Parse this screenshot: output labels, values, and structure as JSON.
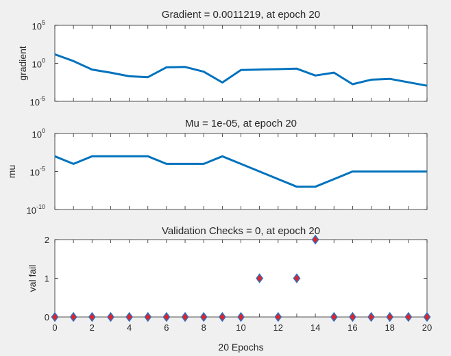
{
  "chart_data": [
    {
      "type": "line",
      "title": "Gradient = 0.0011219, at epoch 20",
      "ylabel": "gradient",
      "xlabel": "",
      "yscale": "log",
      "xlim": [
        0,
        20
      ],
      "ylim_exp": [
        -5,
        5
      ],
      "yticks_exp": [
        -5,
        0,
        5
      ],
      "series": [
        {
          "x": [
            0,
            1,
            2,
            3,
            4,
            5,
            6,
            7,
            8,
            9,
            10,
            11,
            12,
            13,
            14,
            15,
            16,
            17,
            18,
            19,
            20
          ],
          "y": [
            15,
            2,
            0.15,
            0.06,
            0.02,
            0.015,
            0.3,
            0.33,
            0.08,
            0.003,
            0.13,
            0.15,
            0.17,
            0.2,
            0.025,
            0.06,
            0.0018,
            0.007,
            0.009,
            0.0032,
            0.0011219
          ]
        }
      ],
      "color": "#0072bd",
      "grid": false
    },
    {
      "type": "line",
      "title": "Mu = 1e-05, at epoch 20",
      "ylabel": "mu",
      "xlabel": "",
      "yscale": "log",
      "xlim": [
        0,
        20
      ],
      "ylim_exp": [
        -10,
        0
      ],
      "yticks_exp": [
        -10,
        -5,
        0
      ],
      "series": [
        {
          "x": [
            0,
            1,
            2,
            3,
            4,
            5,
            6,
            7,
            8,
            9,
            10,
            11,
            12,
            13,
            14,
            15,
            16,
            17,
            18,
            19,
            20
          ],
          "y": [
            0.001,
            0.0001,
            0.001,
            0.001,
            0.001,
            0.001,
            0.0001,
            0.0001,
            0.0001,
            0.001,
            0.0001,
            1e-05,
            1e-06,
            1e-07,
            1e-07,
            1e-06,
            1e-05,
            1e-05,
            1e-05,
            1e-05,
            1e-05
          ]
        }
      ],
      "color": "#0072bd",
      "grid": false
    },
    {
      "type": "scatter",
      "title": "Validation Checks = 0, at epoch 20",
      "ylabel": "val fail",
      "xlabel": "20 Epochs",
      "xlim": [
        0,
        20
      ],
      "ylim": [
        0,
        2
      ],
      "xticks": [
        0,
        2,
        4,
        6,
        8,
        10,
        12,
        14,
        16,
        18,
        20
      ],
      "yticks": [
        0,
        1,
        2
      ],
      "series": [
        {
          "x": [
            0,
            1,
            2,
            3,
            4,
            5,
            6,
            7,
            8,
            9,
            10,
            11,
            12,
            13,
            14,
            15,
            16,
            17,
            18,
            19,
            20
          ],
          "y": [
            0,
            0,
            0,
            0,
            0,
            0,
            0,
            0,
            0,
            0,
            0,
            1,
            0,
            1,
            2,
            0,
            0,
            0,
            0,
            0,
            0
          ]
        }
      ],
      "marker": "diamond",
      "marker_fill": "#e8202a",
      "marker_edge": "#2f6fb5",
      "grid": false
    }
  ]
}
